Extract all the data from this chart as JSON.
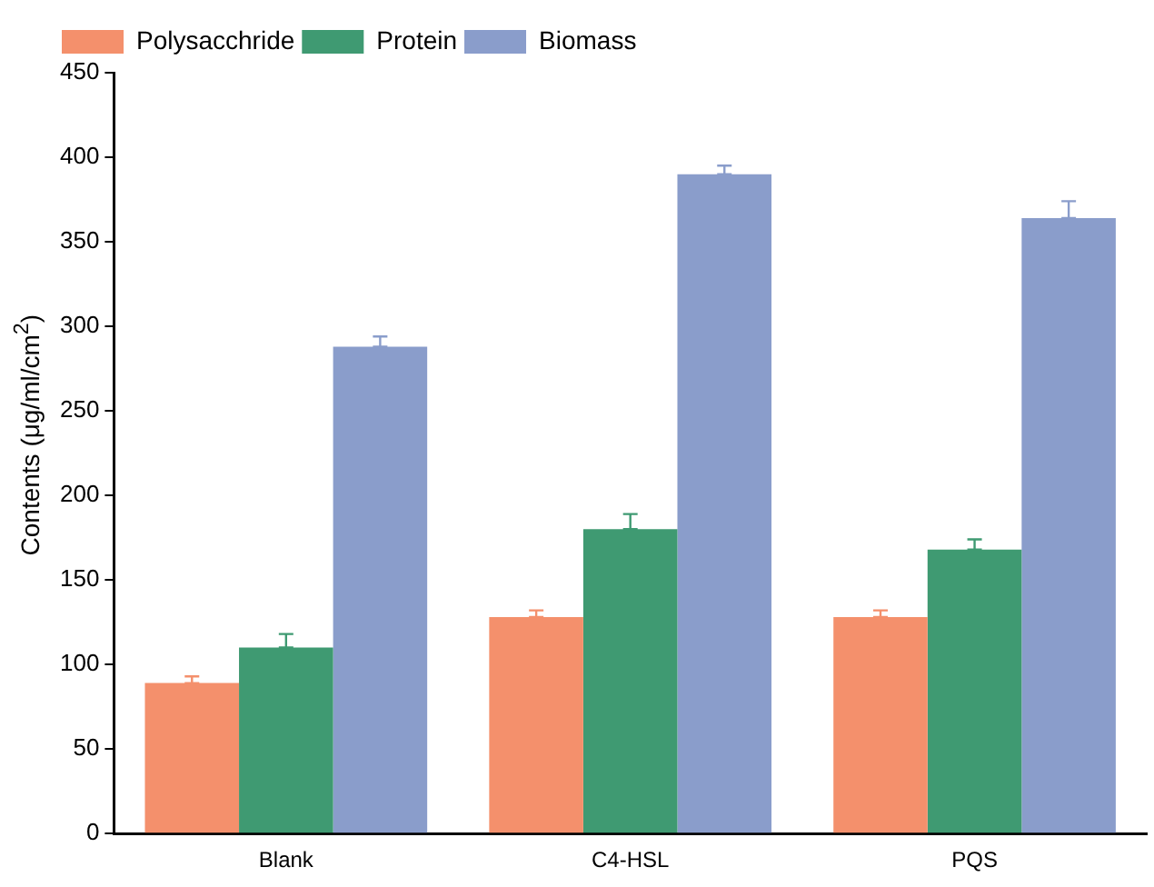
{
  "chart_data": {
    "type": "bar",
    "ylabel": "Contents (μg/ml/cm$^{2}$)",
    "categories": [
      "Blank",
      "C4-HSL",
      "PQS"
    ],
    "series": [
      {
        "name": "Polysacchride",
        "color": "#f4906c",
        "values": [
          89,
          128,
          128
        ],
        "errors": [
          [
            89,
            93
          ],
          [
            128,
            132
          ],
          [
            128,
            132
          ]
        ]
      },
      {
        "name": "Protein",
        "color": "#3f9a72",
        "values": [
          110,
          180,
          168
        ],
        "errors": [
          [
            110,
            118
          ],
          [
            180,
            189
          ],
          [
            168,
            174
          ]
        ]
      },
      {
        "name": "Biomass",
        "color": "#8a9dcb",
        "values": [
          288,
          390,
          364
        ],
        "errors": [
          [
            288,
            294
          ],
          [
            390,
            395
          ],
          [
            364,
            374
          ]
        ]
      }
    ],
    "ylim": [
      0,
      450
    ],
    "yticks": [
      0,
      50,
      100,
      150,
      200,
      250,
      300,
      350,
      400,
      450
    ],
    "grid": false,
    "legend": "top left"
  }
}
